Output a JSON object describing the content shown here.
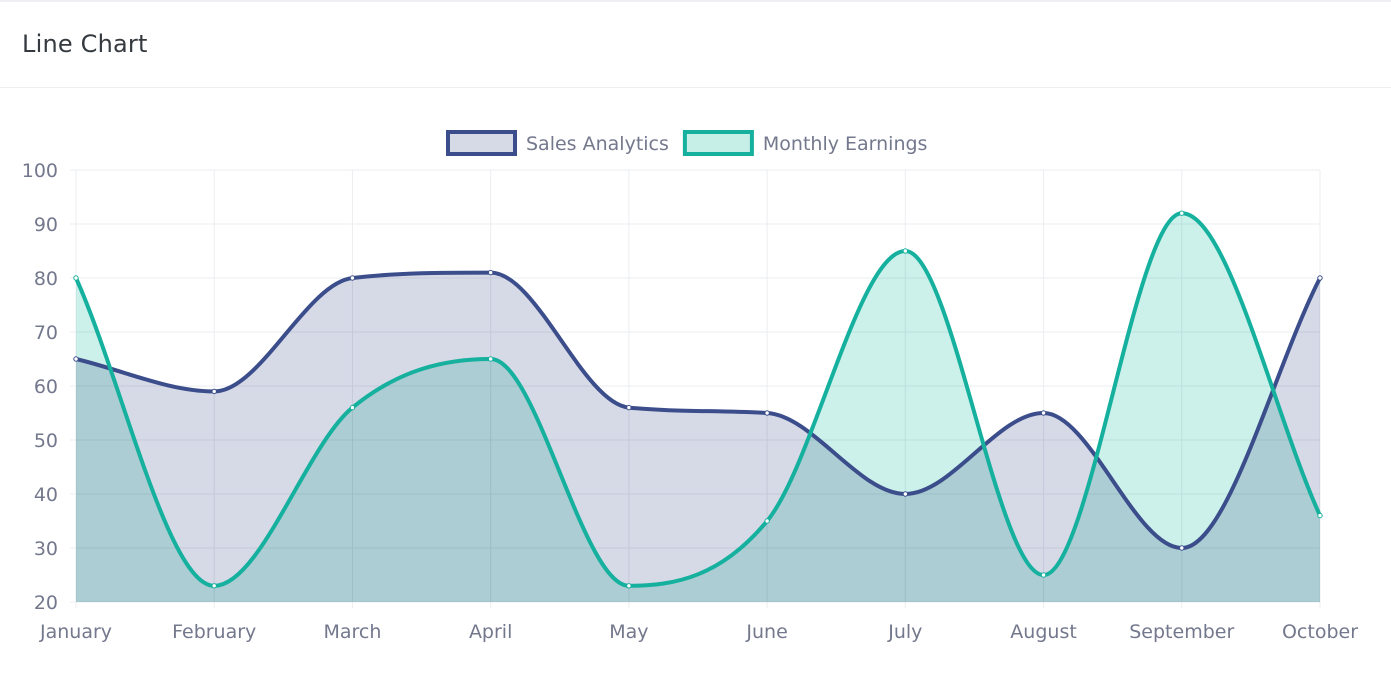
{
  "card": {
    "title": "Line Chart"
  },
  "chart_data": {
    "type": "area",
    "categories": [
      "January",
      "February",
      "March",
      "April",
      "May",
      "June",
      "July",
      "August",
      "September",
      "October"
    ],
    "ylim": [
      20,
      100
    ],
    "yticks": [
      20,
      30,
      40,
      50,
      60,
      70,
      80,
      90,
      100
    ],
    "grid": true,
    "legend": "top-center",
    "series": [
      {
        "name": "Sales Analytics",
        "values": [
          65,
          59,
          80,
          81,
          56,
          55,
          40,
          55,
          30,
          80
        ],
        "stroke": "#3b4e8b",
        "fill": "#d6d9e6"
      },
      {
        "name": "Monthly Earnings",
        "values": [
          80,
          23,
          56,
          65,
          23,
          35,
          85,
          25,
          92,
          36
        ],
        "stroke": "#16b09e",
        "fill": "#c6efe8"
      }
    ]
  }
}
